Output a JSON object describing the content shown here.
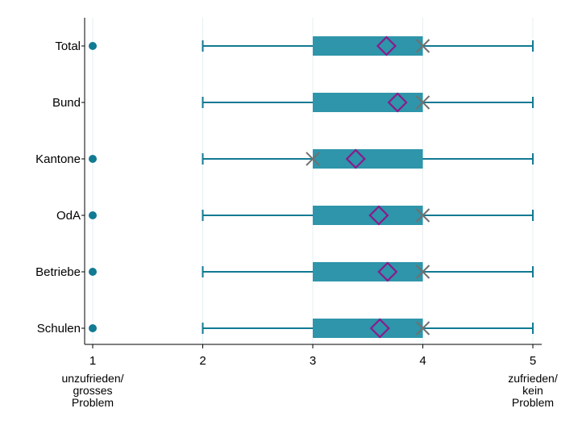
{
  "chart_data": {
    "type": "box",
    "categories": [
      "Total",
      "Bund",
      "Kantone",
      "OdA",
      "Betriebe",
      "Schulen"
    ],
    "xlim": [
      1,
      5
    ],
    "x_ticks": [
      "1",
      "2",
      "3",
      "4",
      "5"
    ],
    "x_tick_sublabels": {
      "left": [
        "unzufrieden/",
        "grosses",
        "Problem"
      ],
      "right": [
        "zufrieden/",
        "kein",
        "Problem"
      ]
    },
    "grid": "vertical",
    "colors": {
      "box": "#2e95aa",
      "whisker": "#127a93",
      "mean": "#8b1a8b",
      "median": "#707070",
      "outlier": "#127a93",
      "grid": "#e6eff2"
    },
    "series": [
      {
        "category": "Total",
        "whisker_low": 2,
        "q1": 3,
        "median": 4,
        "q3": 4,
        "whisker_high": 5,
        "mean": 3.67,
        "outliers": [
          1
        ]
      },
      {
        "category": "Bund",
        "whisker_low": 2,
        "q1": 3,
        "median": 4,
        "q3": 4,
        "whisker_high": 5,
        "mean": 3.77,
        "outliers": []
      },
      {
        "category": "Kantone",
        "whisker_low": 2,
        "q1": 3,
        "median": 3,
        "q3": 4,
        "whisker_high": 5,
        "mean": 3.39,
        "outliers": [
          1
        ]
      },
      {
        "category": "OdA",
        "whisker_low": 2,
        "q1": 3,
        "median": 4,
        "q3": 4,
        "whisker_high": 5,
        "mean": 3.6,
        "outliers": [
          1
        ]
      },
      {
        "category": "Betriebe",
        "whisker_low": 2,
        "q1": 3,
        "median": 4,
        "q3": 4,
        "whisker_high": 5,
        "mean": 3.68,
        "outliers": [
          1
        ]
      },
      {
        "category": "Schulen",
        "whisker_low": 2,
        "q1": 3,
        "median": 4,
        "q3": 4,
        "whisker_high": 5,
        "mean": 3.61,
        "outliers": [
          1
        ]
      }
    ]
  }
}
